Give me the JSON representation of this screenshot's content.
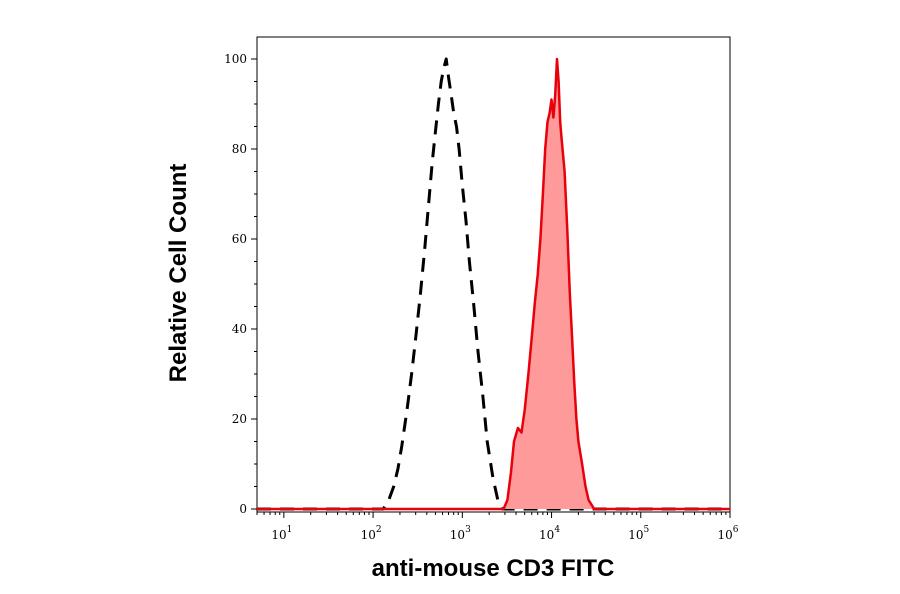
{
  "chart_data": {
    "type": "area",
    "title": "",
    "xlabel": "anti-mouse CD3 FITC",
    "ylabel": "Relative Cell Count",
    "x_scale": "log",
    "xlim": [
      5,
      1000000
    ],
    "ylim": [
      0,
      105
    ],
    "x_ticks": [
      {
        "value": 10,
        "base": "10",
        "exp": "1"
      },
      {
        "value": 100,
        "base": "10",
        "exp": "2"
      },
      {
        "value": 1000,
        "base": "10",
        "exp": "3"
      },
      {
        "value": 10000,
        "base": "10",
        "exp": "4"
      },
      {
        "value": 100000,
        "base": "10",
        "exp": "5"
      },
      {
        "value": 1000000,
        "base": "10",
        "exp": "6"
      }
    ],
    "y_ticks": [
      {
        "value": 0,
        "label": "0"
      },
      {
        "value": 20,
        "label": "20"
      },
      {
        "value": 40,
        "label": "40"
      },
      {
        "value": 60,
        "label": "60"
      },
      {
        "value": 80,
        "label": "80"
      },
      {
        "value": 100,
        "label": "100"
      }
    ],
    "grid": false,
    "legend": "none",
    "series": [
      {
        "style": "dashed",
        "color": "#000000",
        "filled": false,
        "x": [
          5,
          130,
          150,
          170,
          190,
          210,
          240,
          270,
          300,
          340,
          380,
          420,
          460,
          500,
          540,
          580,
          620,
          660,
          700,
          750,
          800,
          860,
          920,
          1000,
          1100,
          1200,
          1350,
          1500,
          1700,
          1900,
          2200,
          2500,
          2800,
          3200,
          1000000
        ],
        "y": [
          0,
          0,
          2,
          5,
          9,
          14,
          22,
          30,
          38,
          48,
          58,
          68,
          77,
          84,
          90,
          95,
          98,
          100,
          96,
          92,
          88,
          85,
          80,
          72,
          64,
          55,
          45,
          35,
          25,
          15,
          7,
          2,
          0,
          0,
          0
        ]
      },
      {
        "style": "solid",
        "color": "#e8000b",
        "fill": "#ff9a9a",
        "filled": true,
        "x": [
          5,
          2900,
          3200,
          3500,
          3800,
          4200,
          4600,
          5000,
          5500,
          6000,
          6500,
          7000,
          7500,
          8000,
          8500,
          9000,
          9500,
          10000,
          10500,
          11000,
          11500,
          12000,
          12500,
          13000,
          14000,
          15000,
          16000,
          17000,
          18000,
          19000,
          20000,
          22000,
          24000,
          26000,
          28000,
          30000,
          1000000
        ],
        "y": [
          0,
          0,
          2,
          8,
          15,
          18,
          17,
          22,
          30,
          38,
          46,
          52,
          60,
          70,
          80,
          86,
          88,
          91,
          87,
          92,
          100,
          95,
          86,
          82,
          75,
          62,
          48,
          38,
          28,
          20,
          15,
          10,
          5,
          2,
          1,
          0,
          0
        ]
      }
    ]
  }
}
